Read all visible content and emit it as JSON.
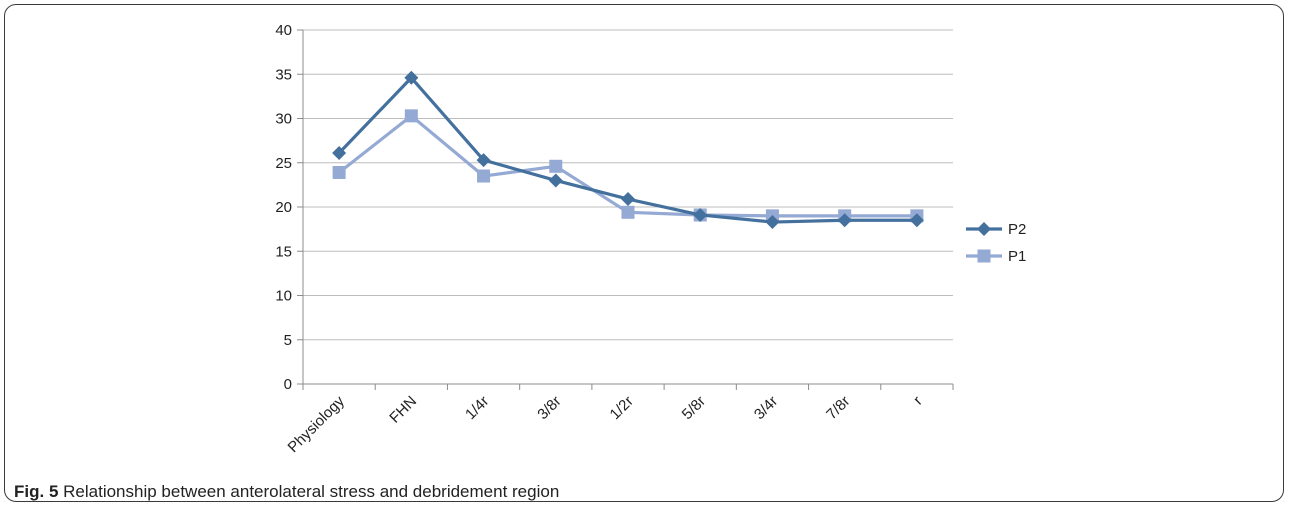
{
  "caption": {
    "figure_label": "Fig. 5",
    "text": "Relationship between anterolateral stress and debridement region"
  },
  "colors": {
    "p2": "#44709e",
    "p1": "#94a9d3",
    "grid": "#bdbdbd",
    "axis": "#8c8c8c"
  },
  "chart_data": {
    "type": "line",
    "categories": [
      "Physiology",
      "FHN",
      "1/4r",
      "3/8r",
      "1/2r",
      "5/8r",
      "3/4r",
      "7/8r",
      "r"
    ],
    "ylim": [
      0,
      40
    ],
    "yticks": [
      0,
      5,
      10,
      15,
      20,
      25,
      30,
      35,
      40
    ],
    "grid": true,
    "legend_position": "right",
    "series": [
      {
        "name": "P2",
        "marker": "diamond",
        "values": [
          26.1,
          34.6,
          25.3,
          23.0,
          20.9,
          19.1,
          18.3,
          18.5,
          18.5
        ]
      },
      {
        "name": "P1",
        "marker": "square",
        "values": [
          23.9,
          30.3,
          23.5,
          24.6,
          19.4,
          19.1,
          19.0,
          19.0,
          19.0
        ]
      }
    ]
  }
}
